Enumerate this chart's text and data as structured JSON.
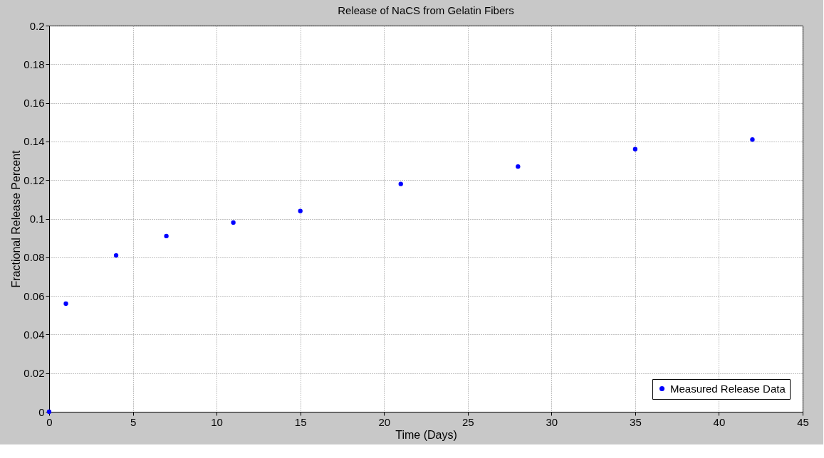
{
  "chart_data": {
    "type": "scatter",
    "title": "Release of NaCS from Gelatin Fibers",
    "xlabel": "Time (Days)",
    "ylabel": "Fractional Release Percent",
    "x": [
      0,
      1,
      4,
      7,
      11,
      15,
      21,
      28,
      35,
      42
    ],
    "series": [
      {
        "name": "Measured Release Data",
        "color": "#0000ff",
        "values": [
          0,
          0.056,
          0.081,
          0.091,
          0.098,
          0.104,
          0.118,
          0.127,
          0.136,
          0.141
        ]
      }
    ],
    "xlim": [
      0,
      45
    ],
    "xticks": [
      0,
      5,
      10,
      15,
      20,
      25,
      30,
      35,
      40,
      45
    ],
    "ylim": [
      0,
      0.2
    ],
    "yticks": [
      0,
      0.02,
      0.04,
      0.06,
      0.08,
      0.1,
      0.12,
      0.14,
      0.16,
      0.18,
      0.2
    ],
    "grid": true,
    "legend": "bottom right",
    "marker": "circle"
  }
}
